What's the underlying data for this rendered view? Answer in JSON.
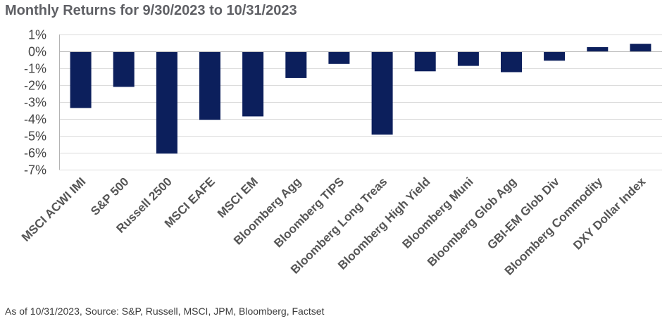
{
  "title": "Monthly Returns for 9/30/2023 to 10/31/2023",
  "source": "As of 10/31/2023, Source: S&P, Russell, MSCI, JPM, Bloomberg, Factset",
  "colors": {
    "bar": "#0c1f5c",
    "title": "#5f6065",
    "grid": "#dcdcdc"
  },
  "chart_data": {
    "type": "bar",
    "title": "Monthly Returns for 9/30/2023 to 10/31/2023",
    "xlabel": "",
    "ylabel": "",
    "ylim": [
      -7,
      1
    ],
    "yticks": [
      1,
      0,
      -1,
      -2,
      -3,
      -4,
      -5,
      -6,
      -7
    ],
    "ytick_labels": [
      "1%",
      "0%",
      "-1%",
      "-2%",
      "-3%",
      "-4%",
      "-5%",
      "-6%",
      "-7%"
    ],
    "grid": true,
    "legend": "none",
    "categories": [
      "MSCI ACWI IMI",
      "S&P 500",
      "Russell 2500",
      "MSCI EAFE",
      "MSCI EM",
      "Bloomberg Agg",
      "Bloomberg TIPS",
      "Bloomberg Long Treas",
      "Bloomberg High Yield",
      "Bloomberg Muni",
      "Bloomberg Glob Agg",
      "GBI-EM Glob Div",
      "Bloomberg Commodity",
      "DXY Dollar Index"
    ],
    "values": [
      -3.35,
      -2.1,
      -6.05,
      -4.05,
      -3.85,
      -1.58,
      -0.74,
      -4.93,
      -1.18,
      -0.86,
      -1.23,
      -0.55,
      0.25,
      0.45
    ]
  }
}
